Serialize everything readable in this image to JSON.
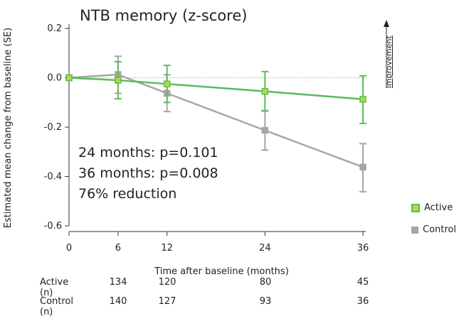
{
  "title": "NTB memory (z-score)",
  "ylabel": "Estimated mean change from baseline (SE)",
  "xlabel": "Time after baseline (months)",
  "improvement_label": "improvement",
  "annotations": [
    "24 months: p=0.101",
    "36 months: p=0.008",
    "76% reduction"
  ],
  "colors": {
    "active": "#5cbb5c",
    "active_fill": "#b8d83a",
    "control": "#a6a6a6",
    "reference": "#5cbb5c"
  },
  "legend": [
    {
      "label": "Active",
      "color": "#5cbb5c",
      "fill": "#b8d83a"
    },
    {
      "label": "Control",
      "color": "#a6a6a6",
      "fill": "#a6a6a6"
    }
  ],
  "n_table": {
    "rows": [
      {
        "label": "Active (n)",
        "values": [
          "134",
          "120",
          "80",
          "45"
        ]
      },
      {
        "label": "Control (n)",
        "values": [
          "140",
          "127",
          "93",
          "36"
        ]
      }
    ],
    "months": [
      6,
      12,
      24,
      36
    ]
  },
  "chart_data": {
    "type": "line",
    "title": "NTB memory (z-score)",
    "xlabel": "Time after baseline (months)",
    "ylabel": "Estimated mean change from baseline (SE)",
    "x": [
      0,
      6,
      12,
      24,
      36
    ],
    "xticks": [
      "0",
      "6",
      "12",
      "24",
      "36"
    ],
    "yticks": [
      "0.2",
      "0.0",
      "-0.2",
      "-0.4",
      "-0.6"
    ],
    "ytick_values": [
      0.2,
      0.0,
      -0.2,
      -0.4,
      -0.6
    ],
    "xlim": [
      0,
      36
    ],
    "ylim": [
      -0.6,
      0.2
    ],
    "reference_line_y": 0.0,
    "series": [
      {
        "name": "Active",
        "values": [
          0.0,
          -0.01,
          -0.025,
          -0.055,
          -0.087
        ],
        "err_low": [
          0.0,
          -0.085,
          -0.1,
          -0.135,
          -0.185
        ],
        "err_high": [
          0.0,
          0.065,
          0.05,
          0.025,
          0.008
        ]
      },
      {
        "name": "Control",
        "values": [
          0.0,
          0.013,
          -0.063,
          -0.213,
          -0.362
        ],
        "err_low": [
          0.0,
          -0.063,
          -0.137,
          -0.293,
          -0.462
        ],
        "err_high": [
          0.0,
          0.087,
          0.012,
          -0.133,
          -0.267
        ]
      }
    ]
  }
}
